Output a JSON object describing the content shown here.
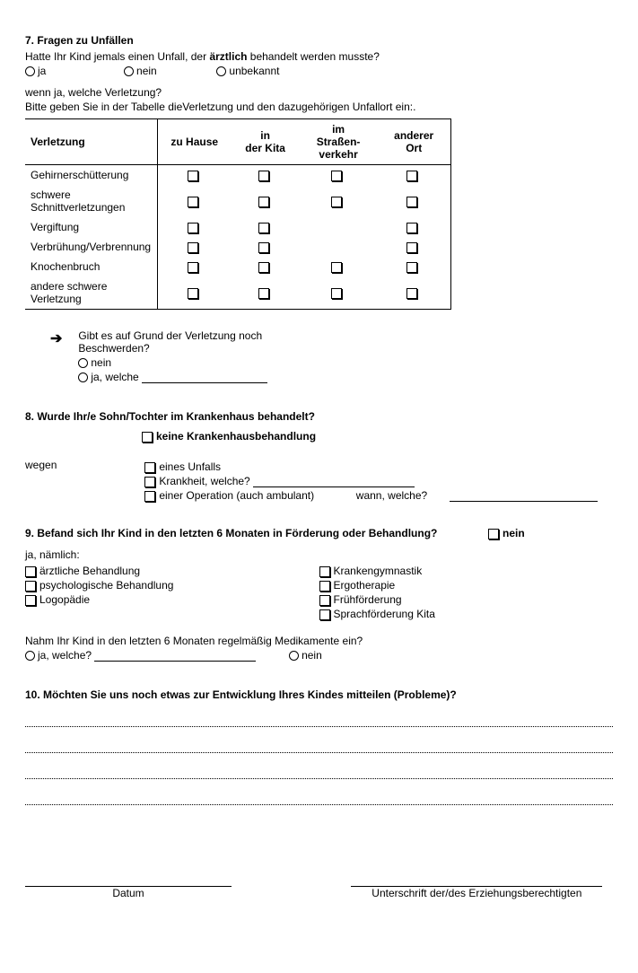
{
  "q7": {
    "heading": "7. Fragen zu Unfällen",
    "question": "Hatte Ihr Kind jemals einen Unfall, der ",
    "question_bold": "ärztlich",
    "question_after": " behandelt werden musste?",
    "opt_ja": "ja",
    "opt_nein": "nein",
    "opt_unbekannt": "unbekannt",
    "if_yes": "wenn ja, welche Verletzung?",
    "table_instruction": "Bitte geben Sie in der Tabelle dieVerletzung und den dazugehörigen Unfallort ein:.",
    "table": {
      "headers": [
        "Verletzung",
        "zu Hause",
        "in\nder Kita",
        "im\nStraßen-\nverkehr",
        "anderer\nOrt"
      ],
      "rows": [
        {
          "label": "Gehirnerschütterung",
          "cells": [
            true,
            true,
            true,
            true
          ]
        },
        {
          "label": "schwere Schnittverletzungen",
          "cells": [
            true,
            true,
            true,
            true
          ]
        },
        {
          "label": "Vergiftung",
          "cells": [
            true,
            true,
            false,
            true
          ]
        },
        {
          "label": "Verbrühung/Verbrennung",
          "cells": [
            true,
            true,
            false,
            true
          ]
        },
        {
          "label": "Knochenbruch",
          "cells": [
            true,
            true,
            true,
            true
          ]
        },
        {
          "label": "andere schwere Verletzung",
          "cells": [
            true,
            true,
            true,
            true
          ]
        }
      ]
    },
    "followup_q": "Gibt es auf Grund der Verletzung noch Beschwerden?",
    "followup_nein": "nein",
    "followup_ja": "ja, welche"
  },
  "q8": {
    "heading": "8. Wurde Ihr/e Sohn/Tochter im Krankenhaus behandelt?",
    "none": "keine Krankenhausbehandlung",
    "wegen": "wegen",
    "opt1": "eines Unfalls",
    "opt2": "Krankheit, welche?",
    "opt3": "einer Operation (auch ambulant)",
    "wann": "wann, welche?"
  },
  "q9": {
    "heading": "9. Befand sich Ihr Kind in den letzten 6 Monaten in Förderung oder Behandlung?",
    "nein": "nein",
    "ja_label": "ja, nämlich:",
    "left": [
      "ärztliche Behandlung",
      "psychologische Behandlung",
      "Logopädie"
    ],
    "right": [
      "Krankengymnastik",
      "Ergotherapie",
      "Frühförderung",
      "Sprachförderung Kita"
    ],
    "med_q": "Nahm Ihr Kind in den letzten 6 Monaten regelmäßig Medikamente ein?",
    "med_ja": "ja, welche?",
    "med_nein": "nein"
  },
  "q10": {
    "heading": "10. Möchten Sie uns noch etwas zur Entwicklung Ihres Kindes mitteilen (Probleme)?"
  },
  "sig": {
    "date": "Datum",
    "signature": "Unterschrift der/des Erziehungsberechtigten"
  }
}
